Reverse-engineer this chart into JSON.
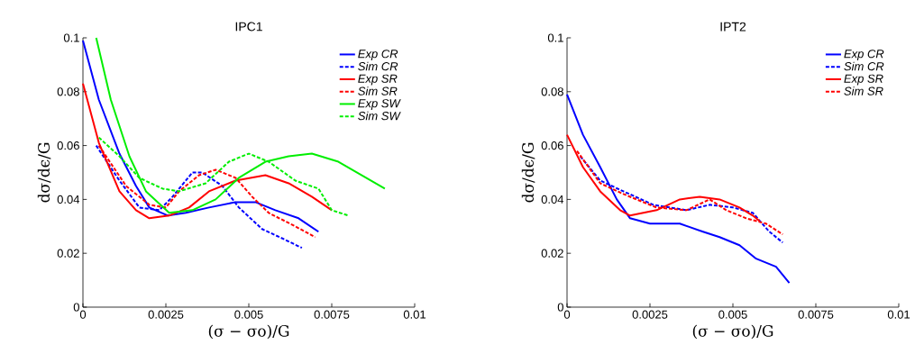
{
  "chart_data": [
    {
      "type": "line",
      "title": "IPC1",
      "xlabel": "(σ − σo)/G",
      "ylabel": "dσ/dϵ/G",
      "xlim": [
        0,
        0.01
      ],
      "ylim": [
        0,
        0.1
      ],
      "xticks": [
        0,
        0.0025,
        0.005,
        0.0075,
        0.01
      ],
      "yticks": [
        0,
        0.02,
        0.04,
        0.06,
        0.08,
        0.1
      ],
      "legend": "top right",
      "series": [
        {
          "name": "Exp CR",
          "color": "#0000ff",
          "line_style": "solid",
          "x": [
            0,
            0.00048,
            0.0011,
            0.0016,
            0.002,
            0.00256,
            0.0031,
            0.0038,
            0.0046,
            0.0052,
            0.0058,
            0.0065,
            0.0071
          ],
          "values": [
            0.099,
            0.077,
            0.057,
            0.045,
            0.037,
            0.034,
            0.035,
            0.037,
            0.039,
            0.039,
            0.036,
            0.033,
            0.028
          ]
        },
        {
          "name": "Sim CR",
          "color": "#0000ff",
          "line_style": "dashed",
          "x": [
            0.0004,
            0.0011,
            0.0017,
            0.0023,
            0.0027,
            0.0033,
            0.0036,
            0.0042,
            0.0047,
            0.0054,
            0.0061,
            0.0066
          ],
          "values": [
            0.06,
            0.047,
            0.037,
            0.036,
            0.041,
            0.05,
            0.05,
            0.045,
            0.037,
            0.029,
            0.025,
            0.022
          ]
        },
        {
          "name": "Exp SR",
          "color": "#ff0000",
          "line_style": "solid",
          "x": [
            0,
            0.00048,
            0.0011,
            0.0016,
            0.002,
            0.0026,
            0.0032,
            0.0038,
            0.0046,
            0.0055,
            0.0062,
            0.0069,
            0.0075
          ],
          "values": [
            0.083,
            0.061,
            0.043,
            0.036,
            0.033,
            0.034,
            0.037,
            0.043,
            0.047,
            0.049,
            0.046,
            0.041,
            0.036
          ]
        },
        {
          "name": "Sim SR",
          "color": "#ff0000",
          "line_style": "dashed",
          "x": [
            0.00048,
            0.0013,
            0.002,
            0.0025,
            0.0029,
            0.0035,
            0.004,
            0.0046,
            0.0051,
            0.0056,
            0.0064,
            0.007
          ],
          "values": [
            0.06,
            0.045,
            0.038,
            0.037,
            0.043,
            0.049,
            0.051,
            0.048,
            0.041,
            0.035,
            0.03,
            0.026
          ]
        },
        {
          "name": "Exp SW",
          "color": "#00ee00",
          "line_style": "solid",
          "x": [
            0.0004,
            0.00084,
            0.0014,
            0.0019,
            0.0026,
            0.0033,
            0.004,
            0.0047,
            0.0055,
            0.0062,
            0.0069,
            0.0077,
            0.0091
          ],
          "values": [
            0.1,
            0.077,
            0.056,
            0.043,
            0.035,
            0.036,
            0.04,
            0.048,
            0.054,
            0.056,
            0.057,
            0.054,
            0.044
          ]
        },
        {
          "name": "Sim SW",
          "color": "#00ee00",
          "line_style": "dashed",
          "x": [
            0.00048,
            0.0011,
            0.0017,
            0.0024,
            0.0029,
            0.0037,
            0.0044,
            0.005,
            0.0056,
            0.0064,
            0.0071,
            0.0075,
            0.008
          ],
          "values": [
            0.063,
            0.056,
            0.048,
            0.044,
            0.043,
            0.046,
            0.054,
            0.057,
            0.054,
            0.047,
            0.044,
            0.036,
            0.034
          ]
        }
      ]
    },
    {
      "type": "line",
      "title": "IPT2",
      "xlabel": "(σ − σo)/G",
      "ylabel": "dσ/dϵ/G",
      "xlim": [
        0,
        0.01
      ],
      "ylim": [
        0,
        0.1
      ],
      "xticks": [
        0,
        0.0025,
        0.005,
        0.0075,
        0.01
      ],
      "yticks": [
        0,
        0.02,
        0.04,
        0.06,
        0.08,
        0.1
      ],
      "legend": "top right",
      "series": [
        {
          "name": "Exp CR",
          "color": "#0000ff",
          "line_style": "solid",
          "x": [
            0,
            0.00048,
            0.001,
            0.0015,
            0.0019,
            0.0025,
            0.0034,
            0.0041,
            0.0046,
            0.0052,
            0.0057,
            0.0063,
            0.0067
          ],
          "values": [
            0.079,
            0.064,
            0.052,
            0.04,
            0.033,
            0.031,
            0.031,
            0.028,
            0.026,
            0.023,
            0.018,
            0.015,
            0.009
          ]
        },
        {
          "name": "Sim CR",
          "color": "#0000ff",
          "line_style": "dashed",
          "x": [
            0.0004,
            0.001,
            0.0017,
            0.0026,
            0.0036,
            0.0043,
            0.005,
            0.0056,
            0.0061,
            0.0065
          ],
          "values": [
            0.056,
            0.047,
            0.043,
            0.038,
            0.036,
            0.038,
            0.037,
            0.035,
            0.028,
            0.024
          ]
        },
        {
          "name": "Exp SR",
          "color": "#ff0000",
          "line_style": "solid",
          "x": [
            0,
            0.00048,
            0.001,
            0.0016,
            0.0019,
            0.0027,
            0.0034,
            0.004,
            0.0046,
            0.0052,
            0.0056,
            0.0058
          ],
          "values": [
            0.064,
            0.052,
            0.043,
            0.036,
            0.034,
            0.036,
            0.04,
            0.041,
            0.04,
            0.037,
            0.034,
            0.032
          ]
        },
        {
          "name": "Sim SR",
          "color": "#ff0000",
          "line_style": "dashed",
          "x": [
            0.0003,
            0.001,
            0.0017,
            0.0027,
            0.0036,
            0.0043,
            0.0048,
            0.0054,
            0.006,
            0.0065
          ],
          "values": [
            0.058,
            0.046,
            0.042,
            0.037,
            0.036,
            0.04,
            0.036,
            0.033,
            0.031,
            0.027
          ]
        }
      ]
    }
  ]
}
